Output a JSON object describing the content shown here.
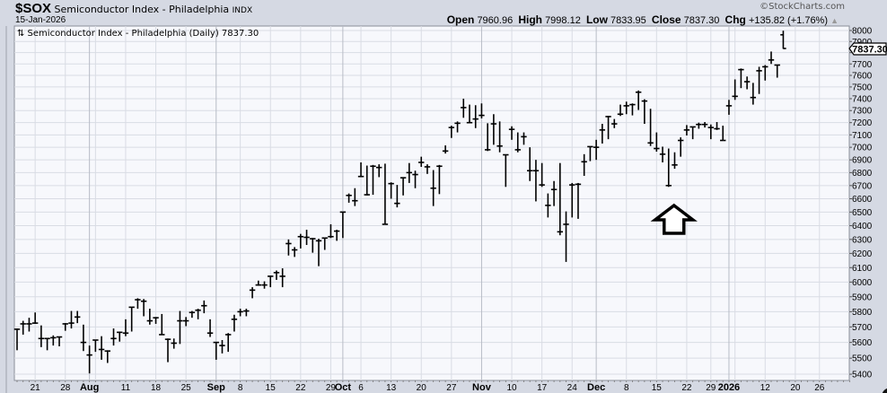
{
  "header": {
    "symbol": "$SOX",
    "name": "Semiconductor Index - Philadelphia",
    "exchange": "INDX",
    "date": "15-Jan-2026",
    "brand": "©StockCharts.com",
    "open_label": "Open",
    "open": "7960.96",
    "high_label": "High",
    "high": "7998.12",
    "low_label": "Low",
    "low": "7833.95",
    "close_label": "Close",
    "close": "7837.30",
    "chg_label": "Chg",
    "chg": "+135.82 (+1.76%)",
    "chg_icon": "triangle-up-icon"
  },
  "chart_data": {
    "type": "ohlc",
    "legend": "⇅ Semiconductor Index - Philadelphia (Daily) 7837.30",
    "last_price_label": "7837.30",
    "y_scale": "log",
    "ylim": [
      5400,
      8000
    ],
    "y_ticks": [
      5400,
      5500,
      5600,
      5700,
      5800,
      5900,
      6000,
      6100,
      6200,
      6300,
      6400,
      6500,
      6600,
      6700,
      6800,
      6900,
      7000,
      7100,
      7200,
      7300,
      7400,
      7500,
      7600,
      7700,
      7800,
      7900,
      8000
    ],
    "grid": true,
    "colors": {
      "bars": "#000000",
      "plot_bg": "#f7f8fc",
      "grid": "#d9dce4",
      "month_grid": "#b8bcc6",
      "page_bg": "#d5d9e3"
    },
    "x_ticks": [
      {
        "date": "2025-07-21",
        "label": "21"
      },
      {
        "date": "2025-07-28",
        "label": "28"
      },
      {
        "date": "2025-08-01",
        "label": "Aug",
        "bold": true
      },
      {
        "date": "2025-08-11",
        "label": "11"
      },
      {
        "date": "2025-08-18",
        "label": "18"
      },
      {
        "date": "2025-08-25",
        "label": "25"
      },
      {
        "date": "2025-09-02",
        "label": "Sep",
        "bold": true
      },
      {
        "date": "2025-09-08",
        "label": "8"
      },
      {
        "date": "2025-09-15",
        "label": "15"
      },
      {
        "date": "2025-09-22",
        "label": "22"
      },
      {
        "date": "2025-09-29",
        "label": "29"
      },
      {
        "date": "2025-10-01",
        "label": "Oct",
        "bold": true
      },
      {
        "date": "2025-10-06",
        "label": "6"
      },
      {
        "date": "2025-10-13",
        "label": "13"
      },
      {
        "date": "2025-10-20",
        "label": "20"
      },
      {
        "date": "2025-10-27",
        "label": "27"
      },
      {
        "date": "2025-11-03",
        "label": "Nov",
        "bold": true
      },
      {
        "date": "2025-11-10",
        "label": "10"
      },
      {
        "date": "2025-11-17",
        "label": "17"
      },
      {
        "date": "2025-11-24",
        "label": "24"
      },
      {
        "date": "2025-12-01",
        "label": "Dec",
        "bold": true
      },
      {
        "date": "2025-12-08",
        "label": "8"
      },
      {
        "date": "2025-12-15",
        "label": "15"
      },
      {
        "date": "2025-12-22",
        "label": "22"
      },
      {
        "date": "2025-12-29",
        "label": "29"
      },
      {
        "date": "2026-01-02",
        "label": "2026",
        "bold": true
      },
      {
        "date": "2026-01-12",
        "label": "12"
      },
      {
        "date": "2026-01-20",
        "label": "20"
      },
      {
        "date": "2026-01-26",
        "label": "26"
      }
    ],
    "annotation": {
      "type": "hollow-up-arrow",
      "date": "2025-12-17"
    },
    "bar_fields": [
      "date",
      "open",
      "high",
      "low",
      "close"
    ],
    "bars": [
      [
        "2025-07-16",
        5685,
        5690,
        5550,
        5685
      ],
      [
        "2025-07-17",
        5720,
        5740,
        5650,
        5720
      ],
      [
        "2025-07-18",
        5720,
        5760,
        5670,
        5720
      ],
      [
        "2025-07-21",
        5725,
        5795,
        5720,
        5725
      ],
      [
        "2025-07-22",
        5625,
        5710,
        5570,
        5625
      ],
      [
        "2025-07-23",
        5625,
        5625,
        5550,
        5625
      ],
      [
        "2025-07-24",
        5630,
        5645,
        5580,
        5630
      ],
      [
        "2025-07-25",
        5635,
        5635,
        5575,
        5635
      ],
      [
        "2025-07-28",
        5720,
        5725,
        5675,
        5720
      ],
      [
        "2025-07-29",
        5725,
        5805,
        5690,
        5725
      ],
      [
        "2025-07-30",
        5765,
        5805,
        5725,
        5765
      ],
      [
        "2025-07-31",
        5600,
        5715,
        5545,
        5600
      ],
      [
        "2025-08-01",
        5520,
        5580,
        5405,
        5520
      ],
      [
        "2025-08-04",
        5615,
        5615,
        5540,
        5615
      ],
      [
        "2025-08-05",
        5555,
        5640,
        5490,
        5555
      ],
      [
        "2025-08-06",
        5545,
        5550,
        5470,
        5545
      ],
      [
        "2025-08-07",
        5625,
        5690,
        5580,
        5625
      ],
      [
        "2025-08-08",
        5665,
        5670,
        5605,
        5665
      ],
      [
        "2025-08-11",
        5660,
        5750,
        5640,
        5660
      ],
      [
        "2025-08-12",
        5830,
        5830,
        5670,
        5830
      ],
      [
        "2025-08-13",
        5880,
        5890,
        5820,
        5880
      ],
      [
        "2025-08-14",
        5870,
        5885,
        5770,
        5870
      ],
      [
        "2025-08-15",
        5740,
        5820,
        5715,
        5740
      ],
      [
        "2025-08-18",
        5760,
        5765,
        5720,
        5760
      ],
      [
        "2025-08-19",
        5650,
        5785,
        5650,
        5650
      ],
      [
        "2025-08-20",
        5620,
        5625,
        5475,
        5620
      ],
      [
        "2025-08-21",
        5595,
        5625,
        5560,
        5595
      ],
      [
        "2025-08-22",
        5740,
        5805,
        5590,
        5740
      ],
      [
        "2025-08-25",
        5740,
        5765,
        5705,
        5740
      ],
      [
        "2025-08-26",
        5795,
        5805,
        5760,
        5795
      ],
      [
        "2025-08-27",
        5810,
        5820,
        5750,
        5810
      ],
      [
        "2025-08-28",
        5840,
        5875,
        5790,
        5840
      ],
      [
        "2025-08-29",
        5660,
        5750,
        5635,
        5660
      ],
      [
        "2025-09-02",
        5600,
        5600,
        5490,
        5600
      ],
      [
        "2025-09-03",
        5580,
        5615,
        5530,
        5580
      ],
      [
        "2025-09-04",
        5650,
        5660,
        5540,
        5650
      ],
      [
        "2025-09-05",
        5750,
        5780,
        5670,
        5750
      ],
      [
        "2025-09-08",
        5800,
        5820,
        5770,
        5800
      ],
      [
        "2025-09-09",
        5805,
        5820,
        5770,
        5805
      ],
      [
        "2025-09-10",
        5945,
        5965,
        5890,
        5945
      ],
      [
        "2025-09-11",
        5980,
        6010,
        5975,
        5980
      ],
      [
        "2025-09-12",
        5980,
        6005,
        5955,
        5980
      ],
      [
        "2025-09-15",
        6040,
        6045,
        5965,
        6040
      ],
      [
        "2025-09-16",
        6065,
        6080,
        6015,
        6065
      ],
      [
        "2025-09-17",
        6040,
        6095,
        5965,
        6040
      ],
      [
        "2025-09-18",
        6270,
        6300,
        6185,
        6270
      ],
      [
        "2025-09-19",
        6225,
        6245,
        6175,
        6225
      ],
      [
        "2025-09-22",
        6320,
        6340,
        6235,
        6320
      ],
      [
        "2025-09-23",
        6315,
        6370,
        6260,
        6315
      ],
      [
        "2025-09-24",
        6305,
        6310,
        6205,
        6305
      ],
      [
        "2025-09-25",
        6290,
        6305,
        6110,
        6290
      ],
      [
        "2025-09-26",
        6310,
        6310,
        6225,
        6310
      ],
      [
        "2025-09-29",
        6320,
        6410,
        6310,
        6320
      ],
      [
        "2025-09-30",
        6360,
        6370,
        6290,
        6360
      ],
      [
        "2025-10-01",
        6500,
        6500,
        6310,
        6500
      ],
      [
        "2025-10-02",
        6625,
        6640,
        6570,
        6625
      ],
      [
        "2025-10-03",
        6585,
        6680,
        6545,
        6585
      ],
      [
        "2025-10-06",
        6770,
        6880,
        6765,
        6770
      ],
      [
        "2025-10-07",
        6630,
        6855,
        6625,
        6630
      ],
      [
        "2025-10-08",
        6850,
        6860,
        6630,
        6850
      ],
      [
        "2025-10-09",
        6840,
        6865,
        6765,
        6840
      ],
      [
        "2025-10-10",
        6410,
        6870,
        6410,
        6410
      ],
      [
        "2025-10-13",
        6715,
        6725,
        6600,
        6715
      ],
      [
        "2025-10-14",
        6565,
        6705,
        6535,
        6565
      ],
      [
        "2025-10-15",
        6760,
        6765,
        6625,
        6760
      ],
      [
        "2025-10-16",
        6800,
        6875,
        6720,
        6800
      ],
      [
        "2025-10-17",
        6785,
        6815,
        6680,
        6785
      ],
      [
        "2025-10-20",
        6880,
        6925,
        6845,
        6880
      ],
      [
        "2025-10-21",
        6845,
        6865,
        6790,
        6845
      ],
      [
        "2025-10-22",
        6680,
        6820,
        6545,
        6680
      ],
      [
        "2025-10-23",
        6850,
        6860,
        6635,
        6850
      ],
      [
        "2025-10-24",
        6970,
        7015,
        6950,
        6970
      ],
      [
        "2025-10-27",
        7160,
        7175,
        7075,
        7160
      ],
      [
        "2025-10-28",
        7195,
        7210,
        7120,
        7195
      ],
      [
        "2025-10-29",
        7325,
        7400,
        7240,
        7325
      ],
      [
        "2025-10-30",
        7200,
        7350,
        7200,
        7200
      ],
      [
        "2025-10-31",
        7230,
        7345,
        7155,
        7230
      ],
      [
        "2025-11-03",
        7260,
        7360,
        7235,
        7260
      ],
      [
        "2025-11-04",
        6980,
        7195,
        6970,
        6980
      ],
      [
        "2025-11-05",
        7190,
        7270,
        7020,
        7190
      ],
      [
        "2025-11-06",
        7010,
        7210,
        6960,
        7010
      ],
      [
        "2025-11-07",
        6940,
        6940,
        6690,
        6940
      ],
      [
        "2025-11-10",
        7145,
        7170,
        7060,
        7145
      ],
      [
        "2025-11-11",
        6980,
        7120,
        6960,
        6980
      ],
      [
        "2025-11-12",
        7085,
        7120,
        7020,
        7085
      ],
      [
        "2025-11-13",
        6815,
        7000,
        6735,
        6815
      ],
      [
        "2025-11-14",
        6815,
        6900,
        6580,
        6815
      ],
      [
        "2025-11-17",
        6705,
        6875,
        6690,
        6705
      ],
      [
        "2025-11-18",
        6550,
        6640,
        6460,
        6550
      ],
      [
        "2025-11-19",
        6670,
        6735,
        6545,
        6670
      ],
      [
        "2025-11-20",
        6355,
        6875,
        6330,
        6355
      ],
      [
        "2025-11-21",
        6410,
        6505,
        6140,
        6410
      ],
      [
        "2025-11-24",
        6705,
        6720,
        6460,
        6705
      ],
      [
        "2025-11-25",
        6710,
        6720,
        6450,
        6710
      ],
      [
        "2025-11-26",
        6885,
        6945,
        6775,
        6885
      ],
      [
        "2025-11-28",
        7005,
        7005,
        6890,
        7005
      ],
      [
        "2025-12-01",
        7000,
        7060,
        6900,
        7000
      ],
      [
        "2025-12-02",
        7140,
        7190,
        7030,
        7140
      ],
      [
        "2025-12-03",
        7250,
        7255,
        7065,
        7250
      ],
      [
        "2025-12-04",
        7190,
        7230,
        7155,
        7190
      ],
      [
        "2025-12-05",
        7270,
        7350,
        7255,
        7270
      ],
      [
        "2025-12-08",
        7340,
        7375,
        7270,
        7340
      ],
      [
        "2025-12-09",
        7350,
        7360,
        7260,
        7350
      ],
      [
        "2025-12-10",
        7455,
        7470,
        7305,
        7455
      ],
      [
        "2025-12-11",
        7380,
        7395,
        7190,
        7380
      ],
      [
        "2025-12-12",
        7035,
        7315,
        7010,
        7035
      ],
      [
        "2025-12-15",
        6990,
        7120,
        6965,
        6990
      ],
      [
        "2025-12-16",
        6945,
        7005,
        6880,
        6945
      ],
      [
        "2025-12-17",
        6700,
        6990,
        6690,
        6700
      ],
      [
        "2025-12-18",
        6860,
        6960,
        6830,
        6860
      ],
      [
        "2025-12-19",
        7055,
        7080,
        6925,
        7055
      ],
      [
        "2025-12-22",
        7140,
        7180,
        7095,
        7140
      ],
      [
        "2025-12-23",
        7165,
        7165,
        7065,
        7165
      ],
      [
        "2025-12-24",
        7185,
        7200,
        7150,
        7185
      ],
      [
        "2025-12-26",
        7185,
        7205,
        7160,
        7185
      ],
      [
        "2025-12-29",
        7160,
        7185,
        7065,
        7160
      ],
      [
        "2025-12-30",
        7150,
        7205,
        7140,
        7150
      ],
      [
        "2025-12-31",
        7055,
        7175,
        7055,
        7055
      ],
      [
        "2026-01-02",
        7340,
        7390,
        7265,
        7340
      ],
      [
        "2026-01-05",
        7420,
        7565,
        7390,
        7420
      ],
      [
        "2026-01-06",
        7650,
        7660,
        7490,
        7650
      ],
      [
        "2026-01-07",
        7545,
        7590,
        7480,
        7545
      ],
      [
        "2026-01-08",
        7410,
        7535,
        7350,
        7410
      ],
      [
        "2026-01-09",
        7640,
        7675,
        7440,
        7640
      ],
      [
        "2026-01-12",
        7675,
        7690,
        7555,
        7675
      ],
      [
        "2026-01-13",
        7735,
        7810,
        7700,
        7735
      ],
      [
        "2026-01-14",
        7690,
        7690,
        7580,
        7690
      ],
      [
        "2026-01-15",
        7960.96,
        7998.12,
        7833.95,
        7837.3
      ]
    ]
  }
}
